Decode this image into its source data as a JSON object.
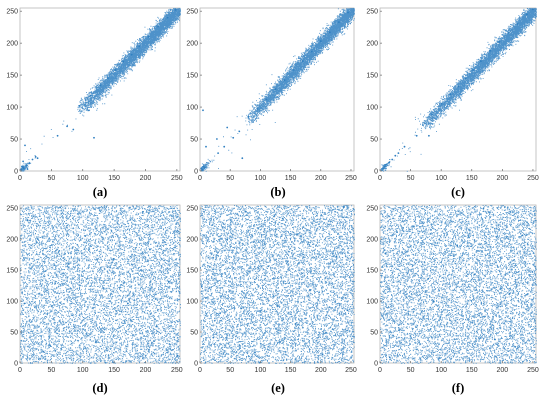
{
  "colors": {
    "points": "#2f7fc1",
    "axis": "#b8b8b8",
    "text": "#333333"
  },
  "chart_data": [
    {
      "panel": "a",
      "caption": "(a)",
      "type": "scatter",
      "pattern": "correlated",
      "xlim": [
        0,
        255
      ],
      "ylim": [
        0,
        255
      ],
      "xticks": [
        0,
        50,
        100,
        150,
        200,
        250
      ],
      "yticks": [
        0,
        50,
        100,
        150,
        200,
        250
      ],
      "xtick_labels": [
        "0",
        "50",
        "100",
        "150",
        "200",
        "250"
      ],
      "ytick_labels": [
        "0",
        "50",
        "100",
        "150",
        "200",
        "250"
      ],
      "points": [
        [
          95,
          102
        ],
        [
          112,
          118
        ],
        [
          128,
          134
        ],
        [
          140,
          145
        ],
        [
          152,
          158
        ],
        [
          165,
          171
        ],
        [
          178,
          182
        ],
        [
          190,
          195
        ],
        [
          205,
          210
        ],
        [
          220,
          226
        ],
        [
          235,
          240
        ],
        [
          248,
          252
        ],
        [
          2,
          3
        ],
        [
          5,
          6
        ],
        [
          10,
          9
        ],
        [
          15,
          12
        ],
        [
          20,
          18
        ],
        [
          25,
          22
        ],
        [
          28,
          20
        ],
        [
          6,
          4
        ],
        [
          3,
          7
        ],
        [
          60,
          55
        ],
        [
          75,
          70
        ],
        [
          85,
          65
        ],
        [
          110,
          95
        ],
        [
          118,
          52
        ],
        [
          8,
          40
        ],
        [
          5,
          15
        ],
        [
          12,
          3
        ]
      ]
    },
    {
      "panel": "b",
      "caption": "(b)",
      "type": "scatter",
      "pattern": "correlated",
      "xlim": [
        0,
        255
      ],
      "ylim": [
        0,
        255
      ],
      "xticks": [
        0,
        50,
        100,
        150,
        200,
        250
      ],
      "yticks": [
        0,
        50,
        100,
        150,
        200,
        250
      ],
      "xtick_labels": [
        "0",
        "50",
        "100",
        "150",
        "200",
        "250"
      ],
      "ytick_labels": [
        "0",
        "50",
        "100",
        "150",
        "200",
        "250"
      ],
      "points": [
        [
          80,
          85
        ],
        [
          95,
          97
        ],
        [
          110,
          112
        ],
        [
          125,
          128
        ],
        [
          140,
          142
        ],
        [
          155,
          158
        ],
        [
          170,
          172
        ],
        [
          185,
          187
        ],
        [
          200,
          203
        ],
        [
          215,
          217
        ],
        [
          230,
          233
        ],
        [
          245,
          248
        ],
        [
          2,
          4
        ],
        [
          4,
          2
        ],
        [
          6,
          7
        ],
        [
          8,
          5
        ],
        [
          30,
          28
        ],
        [
          40,
          38
        ],
        [
          55,
          52
        ],
        [
          65,
          62
        ],
        [
          10,
          38
        ],
        [
          5,
          95
        ],
        [
          28,
          50
        ],
        [
          70,
          20
        ],
        [
          45,
          68
        ]
      ]
    },
    {
      "panel": "c",
      "caption": "(c)",
      "type": "scatter",
      "pattern": "correlated",
      "xlim": [
        0,
        255
      ],
      "ylim": [
        0,
        255
      ],
      "xticks": [
        0,
        50,
        100,
        150,
        200,
        250
      ],
      "yticks": [
        0,
        50,
        100,
        150,
        200,
        250
      ],
      "xtick_labels": [
        "0",
        "50",
        "100",
        "150",
        "200",
        "250"
      ],
      "ytick_labels": [
        "0",
        "50",
        "100",
        "150",
        "200",
        "250"
      ],
      "points": [
        [
          70,
          72
        ],
        [
          85,
          88
        ],
        [
          100,
          105
        ],
        [
          115,
          120
        ],
        [
          128,
          132
        ],
        [
          140,
          145
        ],
        [
          152,
          158
        ],
        [
          165,
          172
        ],
        [
          180,
          188
        ],
        [
          195,
          202
        ],
        [
          210,
          216
        ],
        [
          225,
          230
        ],
        [
          240,
          245
        ],
        [
          250,
          253
        ],
        [
          5,
          4
        ],
        [
          8,
          7
        ],
        [
          10,
          10
        ],
        [
          15,
          13
        ],
        [
          20,
          18
        ],
        [
          25,
          24
        ],
        [
          30,
          28
        ],
        [
          40,
          38
        ],
        [
          60,
          55
        ],
        [
          80,
          55
        ]
      ]
    },
    {
      "panel": "d",
      "caption": "(d)",
      "type": "scatter",
      "pattern": "uniform",
      "xlim": [
        0,
        255
      ],
      "ylim": [
        0,
        255
      ],
      "xticks": [
        0,
        50,
        100,
        150,
        200,
        250
      ],
      "yticks": [
        0,
        50,
        100,
        150,
        200,
        250
      ],
      "xtick_labels": [
        "0",
        "50",
        "100",
        "150",
        "200",
        "250"
      ],
      "ytick_labels": [
        "0",
        "50",
        "100",
        "150",
        "200",
        "250"
      ],
      "points": [
        [
          12,
          230
        ],
        [
          37,
          18
        ],
        [
          58,
          142
        ],
        [
          83,
          77
        ],
        [
          104,
          205
        ],
        [
          121,
          34
        ],
        [
          149,
          168
        ],
        [
          172,
          96
        ],
        [
          196,
          244
        ],
        [
          218,
          59
        ],
        [
          237,
          131
        ],
        [
          251,
          12
        ],
        [
          7,
          96
        ],
        [
          64,
          251
        ],
        [
          133,
          121
        ],
        [
          207,
          183
        ]
      ]
    },
    {
      "panel": "e",
      "caption": "(e)",
      "type": "scatter",
      "pattern": "uniform",
      "xlim": [
        0,
        255
      ],
      "ylim": [
        0,
        255
      ],
      "xticks": [
        0,
        50,
        100,
        150,
        200,
        250
      ],
      "yticks": [
        0,
        50,
        100,
        150,
        200,
        250
      ],
      "xtick_labels": [
        "0",
        "50",
        "100",
        "150",
        "200",
        "250"
      ],
      "ytick_labels": [
        "0",
        "50",
        "100",
        "150",
        "200",
        "250"
      ],
      "points": [
        [
          22,
          41
        ],
        [
          45,
          199
        ],
        [
          68,
          88
        ],
        [
          91,
          17
        ],
        [
          113,
          156
        ],
        [
          137,
          233
        ],
        [
          158,
          63
        ],
        [
          182,
          118
        ],
        [
          203,
          14
        ],
        [
          226,
          172
        ],
        [
          244,
          85
        ],
        [
          3,
          124
        ],
        [
          76,
          244
        ],
        [
          167,
          205
        ],
        [
          238,
          252
        ],
        [
          129,
          92
        ]
      ]
    },
    {
      "panel": "f",
      "caption": "(f)",
      "type": "scatter",
      "pattern": "uniform",
      "xlim": [
        0,
        255
      ],
      "ylim": [
        0,
        255
      ],
      "xticks": [
        0,
        50,
        100,
        150,
        200,
        250
      ],
      "yticks": [
        0,
        50,
        100,
        150,
        200,
        250
      ],
      "xtick_labels": [
        "0",
        "50",
        "100",
        "150",
        "200",
        "250"
      ],
      "ytick_labels": [
        "0",
        "50",
        "100",
        "150",
        "200",
        "250"
      ],
      "points": [
        [
          9,
          177
        ],
        [
          31,
          53
        ],
        [
          54,
          221
        ],
        [
          79,
          136
        ],
        [
          97,
          8
        ],
        [
          126,
          190
        ],
        [
          144,
          71
        ],
        [
          169,
          249
        ],
        [
          188,
          38
        ],
        [
          212,
          112
        ],
        [
          233,
          206
        ],
        [
          249,
          147
        ],
        [
          16,
          9
        ],
        [
          88,
          99
        ],
        [
          155,
          143
        ],
        [
          221,
          26
        ]
      ]
    }
  ]
}
